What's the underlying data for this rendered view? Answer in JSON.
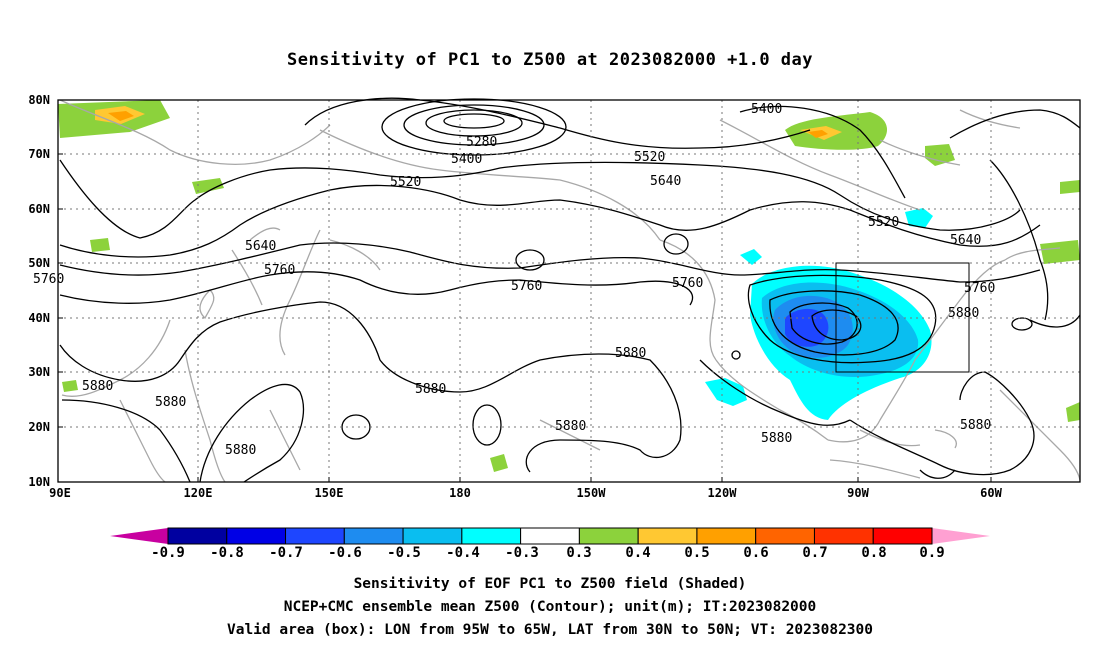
{
  "title": "Sensitivity of PC1 to Z500 at 2023082000 +1.0 day",
  "lat_ticks": [
    "80N",
    "70N",
    "60N",
    "50N",
    "40N",
    "30N",
    "20N",
    "10N"
  ],
  "lon_ticks": [
    "90E",
    "120E",
    "150E",
    "180",
    "150W",
    "120W",
    "90W",
    "60W"
  ],
  "contour_labels": [
    "5280",
    "5400",
    "5400",
    "5520",
    "5520",
    "5520",
    "5640",
    "5640",
    "5640",
    "5760",
    "5760",
    "5760",
    "5760",
    "5760",
    "5880",
    "5880",
    "5880",
    "5880",
    "5880",
    "5880",
    "5880",
    "5880",
    "5880"
  ],
  "colorbar": {
    "labels": [
      "-0.9",
      "-0.8",
      "-0.7",
      "-0.6",
      "-0.5",
      "-0.4",
      "-0.3",
      "0.3",
      "0.4",
      "0.5",
      "0.6",
      "0.7",
      "0.8",
      "0.9"
    ],
    "colors": [
      "#0000a0",
      "#0000e6",
      "#1e46ff",
      "#1e8cf0",
      "#0abef0",
      "#00ffff",
      "#ffffff",
      "#8cd23c",
      "#ffc832",
      "#ffa000",
      "#ff6400",
      "#ff3200",
      "#ff0000"
    ],
    "low_end_color": "#c800a0",
    "high_end_color": "#ffa0d2"
  },
  "captions": [
    "Sensitivity of EOF PC1 to Z500 field (Shaded)",
    "NCEP+CMC ensemble mean Z500 (Contour); unit(m); IT:2023082000",
    "Valid area (box): LON from 95W to 65W, LAT from 30N to 50N; VT: 2023082300"
  ]
}
